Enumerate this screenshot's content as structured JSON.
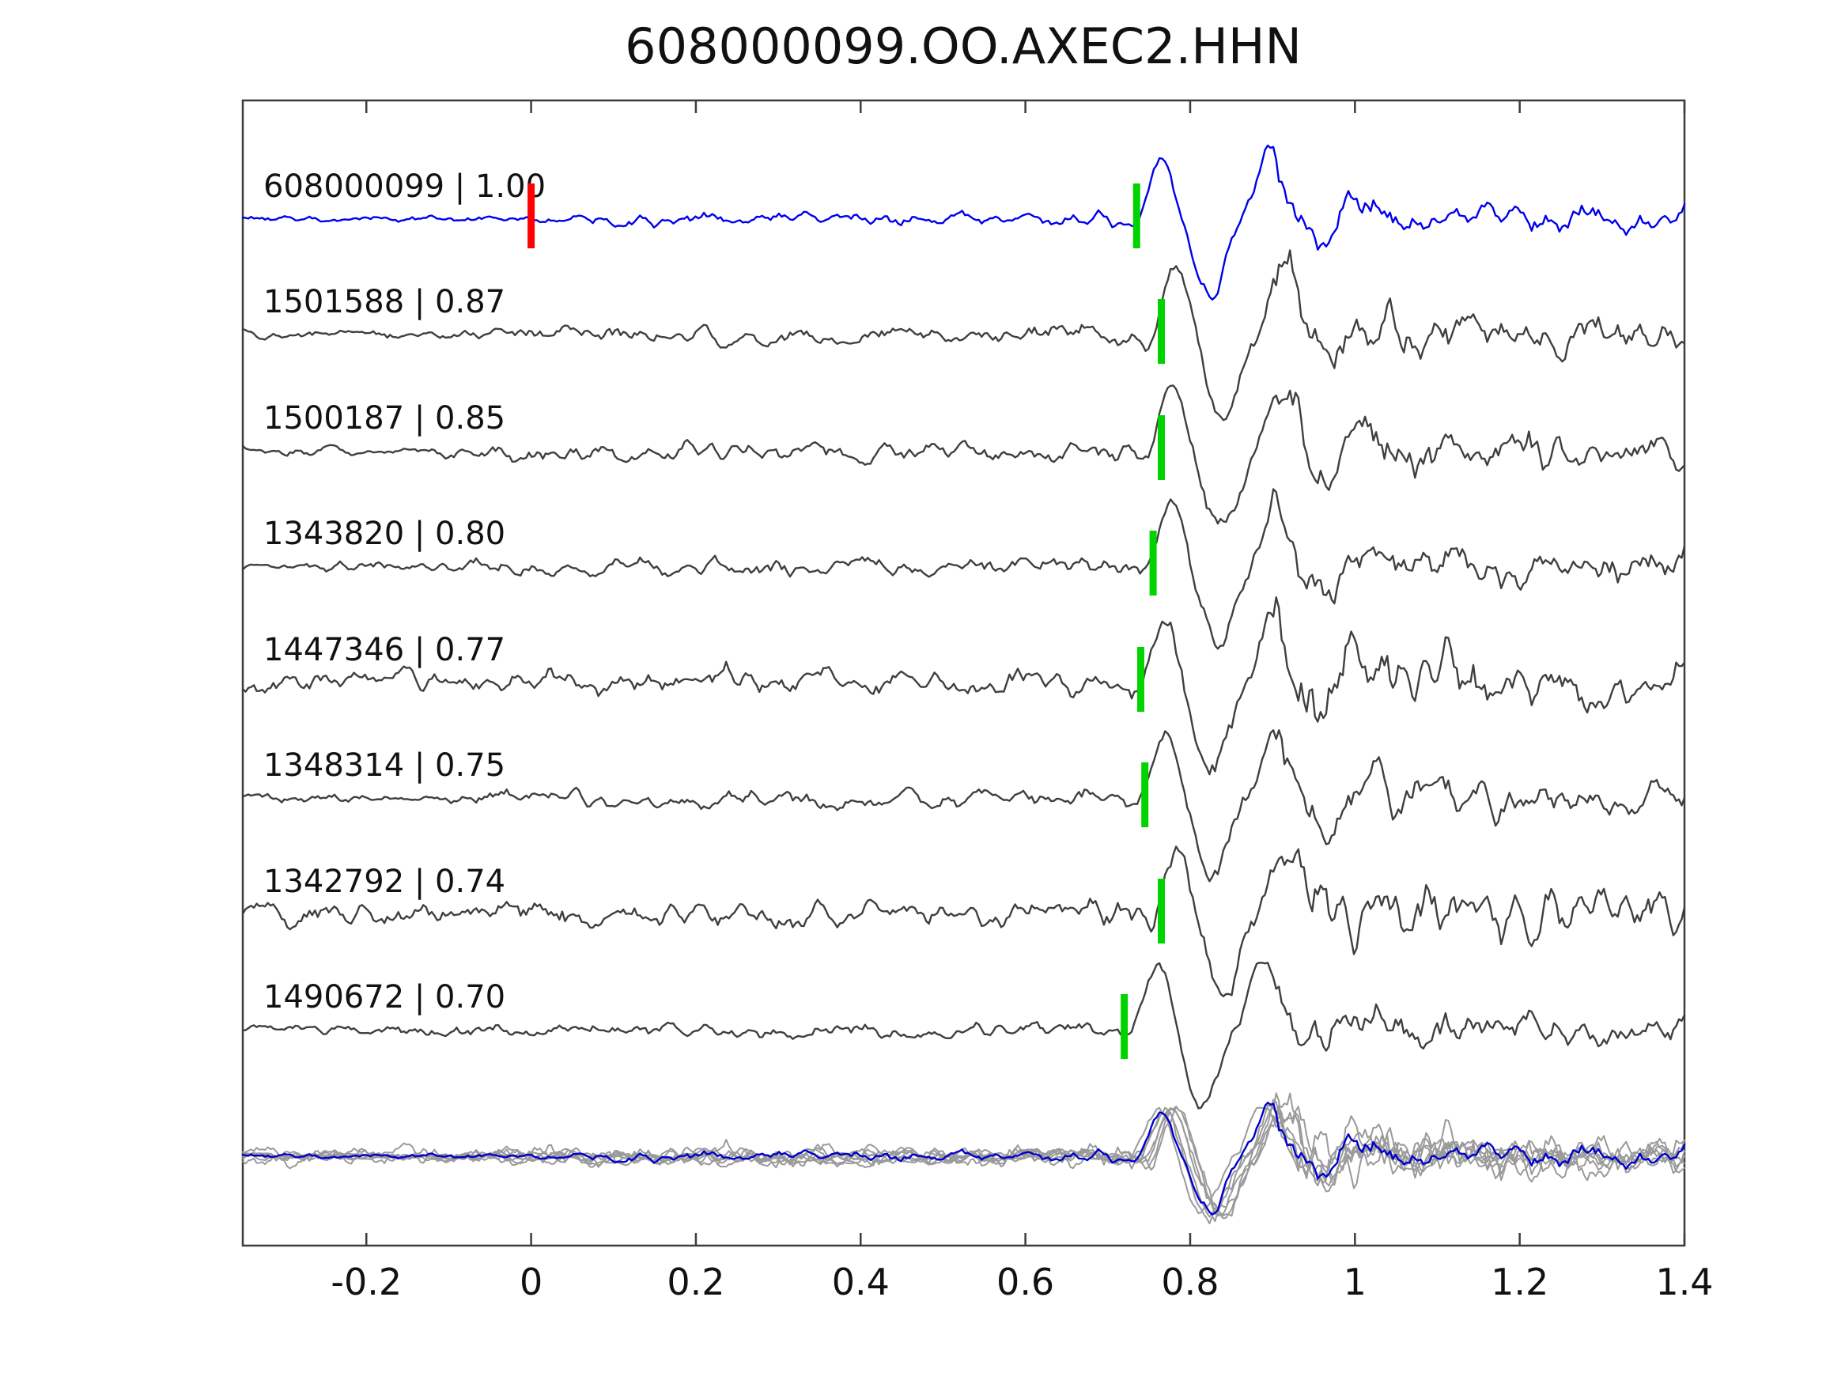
{
  "figure": {
    "title": "608000099.OO.AXEC2.HHN"
  },
  "chart_data": {
    "type": "line",
    "title": "608000099.OO.AXEC2.HHN",
    "subtitle": "",
    "xlabel": "",
    "ylabel": "",
    "xlim": [
      -0.35,
      1.4
    ],
    "xticks": [
      -0.2,
      0,
      0.2,
      0.4,
      0.6,
      0.8,
      1,
      1.2,
      1.4
    ],
    "xtick_labels": [
      "-0.2",
      "0",
      "0.2",
      "0.4",
      "0.6",
      "0.8",
      "1",
      "1.2",
      "1.4"
    ],
    "grid": false,
    "legend": null,
    "description": "Stacked seismic waveform traces: reference event (blue, top) compared with matched template events (dark gray). Green bars mark pick times, red bar marks reference zero time. Bottom row overlays all matched traces (gray) with the reference trace (blue).",
    "colors": {
      "reference": "#0000ee",
      "match": "#3f3f3f",
      "pick_marker": "#00d400",
      "reference_marker": "#ff0000",
      "overlay_gray": "#9a9a9a",
      "overlay_blue": "#0000cc",
      "axis": "#3c3c3c",
      "text": "#111111"
    },
    "traces": [
      {
        "label": "608000099 | 1.00",
        "id": "608000099",
        "correlation": 1.0,
        "pick_time": 0.735,
        "reference_marker_time": 0.0,
        "is_reference": true,
        "seed": 7,
        "noise_scale": 0.7,
        "quiet_until": 0.02
      },
      {
        "label": "1501588 | 0.87",
        "id": "1501588",
        "correlation": 0.87,
        "pick_time": 0.765,
        "is_reference": false,
        "seed": 11,
        "noise_scale": 1.0,
        "quiet_until": 0.0
      },
      {
        "label": "1500187 | 0.85",
        "id": "1500187",
        "correlation": 0.85,
        "pick_time": 0.765,
        "is_reference": false,
        "seed": 23,
        "noise_scale": 1.05,
        "quiet_until": -0.1
      },
      {
        "label": "1343820 | 0.80",
        "id": "1343820",
        "correlation": 0.8,
        "pick_time": 0.755,
        "is_reference": false,
        "seed": 37,
        "noise_scale": 0.95,
        "quiet_until": -0.15
      },
      {
        "label": "1447346 | 0.77",
        "id": "1447346",
        "correlation": 0.77,
        "pick_time": 0.74,
        "is_reference": false,
        "seed": 51,
        "noise_scale": 1.35,
        "quiet_until": -0.5
      },
      {
        "label": "1348314 | 0.75",
        "id": "1348314",
        "correlation": 0.75,
        "pick_time": 0.745,
        "is_reference": false,
        "seed": 63,
        "noise_scale": 1.0,
        "quiet_until": -0.05
      },
      {
        "label": "1342792 | 0.74",
        "id": "1342792",
        "correlation": 0.74,
        "pick_time": 0.765,
        "is_reference": false,
        "seed": 77,
        "noise_scale": 1.3,
        "quiet_until": -0.5
      },
      {
        "label": "1490672 | 0.70",
        "id": "1490672",
        "correlation": 0.7,
        "pick_time": 0.72,
        "is_reference": false,
        "seed": 91,
        "noise_scale": 0.85,
        "quiet_until": -0.2
      }
    ],
    "overlay_row": {
      "description": "All matched traces overlaid (gray) with reference trace (blue)"
    }
  }
}
